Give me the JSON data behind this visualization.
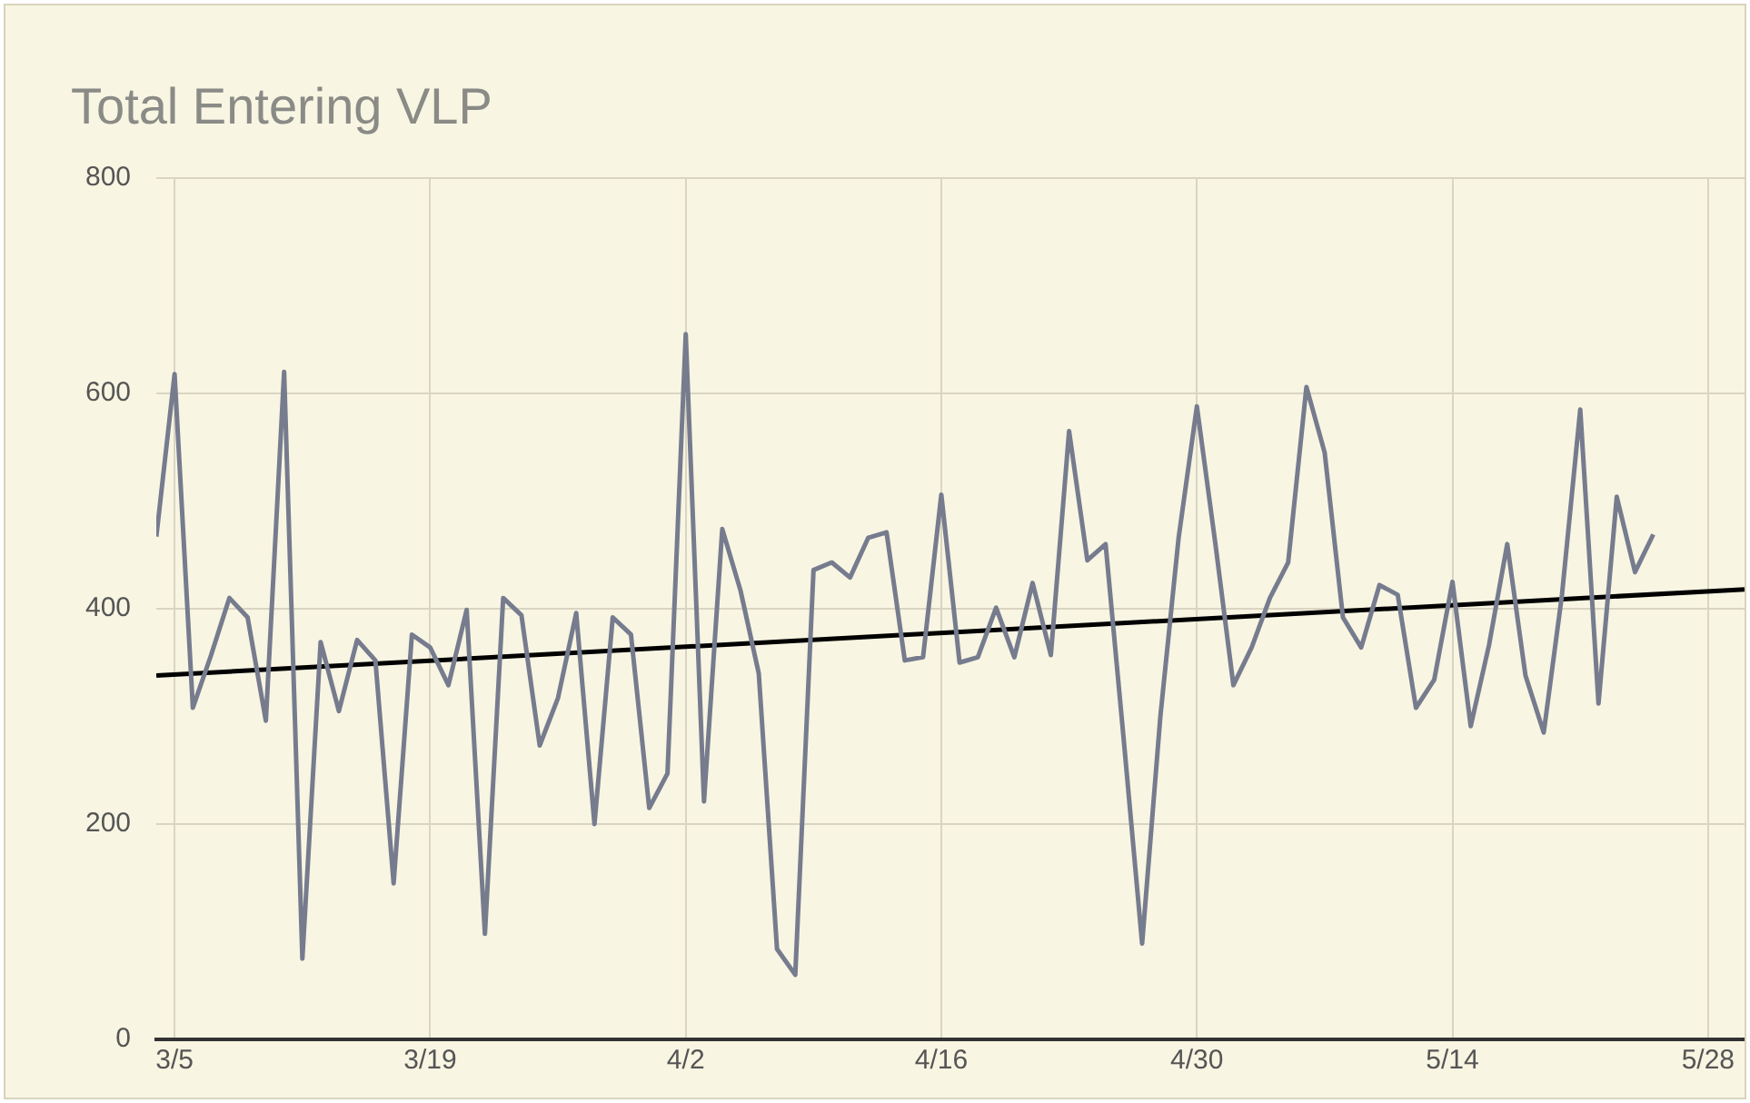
{
  "chart_data": {
    "type": "line",
    "title": "Total Entering VLP",
    "x": [
      "--03-04",
      "--03-05",
      "--03-06",
      "--03-07",
      "--03-08",
      "--03-09",
      "--03-10",
      "--03-11",
      "--03-12",
      "--03-13",
      "--03-14",
      "--03-15",
      "--03-16",
      "--03-17",
      "--03-18",
      "--03-19",
      "--03-20",
      "--03-21",
      "--03-22",
      "--03-23",
      "--03-24",
      "--03-25",
      "--03-26",
      "--03-27",
      "--03-28",
      "--03-29",
      "--03-30",
      "--03-31",
      "--04-01",
      "--04-02",
      "--04-03",
      "--04-04",
      "--04-05",
      "--04-06",
      "--04-07",
      "--04-08",
      "--04-09",
      "--04-10",
      "--04-11",
      "--04-12",
      "--04-13",
      "--04-14",
      "--04-15",
      "--04-16",
      "--04-17",
      "--04-18",
      "--04-19",
      "--04-20",
      "--04-21",
      "--04-22",
      "--04-23",
      "--04-24",
      "--04-25",
      "--04-26",
      "--04-27",
      "--04-28",
      "--04-29",
      "--04-30",
      "--05-01",
      "--05-02",
      "--05-03",
      "--05-04",
      "--05-05",
      "--05-06",
      "--05-07",
      "--05-08",
      "--05-09",
      "--05-10",
      "--05-11",
      "--05-12",
      "--05-13",
      "--05-14",
      "--05-15",
      "--05-16",
      "--05-17",
      "--05-18",
      "--05-19",
      "--05-20",
      "--05-21",
      "--05-22",
      "--05-23",
      "--05-24",
      "--05-25"
    ],
    "series": [
      {
        "color": "#767c8e",
        "values": [
          467,
          618,
          308,
          357,
          410,
          392,
          296,
          620,
          75,
          369,
          305,
          371,
          352,
          145,
          376,
          364,
          329,
          399,
          98,
          410,
          394,
          273,
          317,
          396,
          200,
          392,
          376,
          215,
          247,
          655,
          221,
          474,
          417,
          340,
          84,
          60,
          436,
          443,
          429,
          466,
          471,
          352,
          355,
          506,
          350,
          355,
          401,
          355,
          424,
          357,
          565,
          445,
          460,
          277,
          89,
          300,
          466,
          588,
          462,
          329,
          364,
          410,
          443,
          606,
          545,
          392,
          364,
          422,
          413,
          308,
          334,
          425,
          291,
          366,
          460,
          338,
          285,
          413,
          585,
          312,
          504,
          434,
          469
        ]
      },
      {
        "type": "line",
        "color": "#000000",
        "x": [
          "--03-04",
          "--05-30"
        ],
        "values": [
          338,
          418
        ]
      }
    ],
    "xlim": [
      "--03-04",
      "--05-30"
    ],
    "xticks": [
      {
        "value": "--03-05",
        "label": "3/5"
      },
      {
        "value": "--03-19",
        "label": "3/19"
      },
      {
        "value": "--04-02",
        "label": "4/2"
      },
      {
        "value": "--04-16",
        "label": "4/16"
      },
      {
        "value": "--04-30",
        "label": "4/30"
      },
      {
        "value": "--05-14",
        "label": "5/14"
      },
      {
        "value": "--05-28",
        "label": "5/28"
      }
    ],
    "ylim": [
      0,
      800
    ],
    "yticks": [
      0,
      200,
      400,
      600,
      800
    ],
    "grid": true,
    "legend": false,
    "marker": "none",
    "line_style": "solid"
  }
}
